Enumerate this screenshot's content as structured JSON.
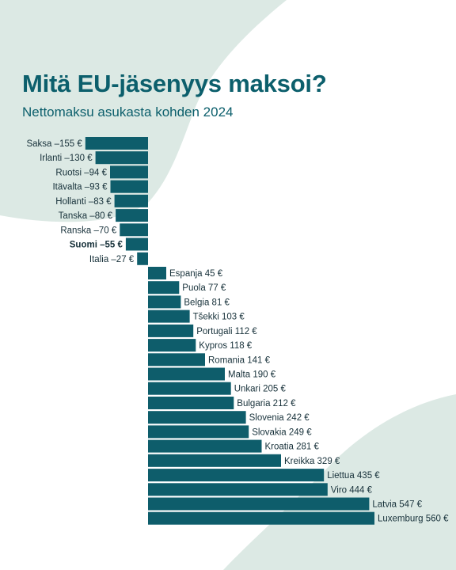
{
  "title": "Mitä EU-jäsenyys maksoi?",
  "subtitle": "Nettomaksu asukasta kohden 2024",
  "colors": {
    "bar": "#0e5d6b",
    "title": "#0c5f6c",
    "background_shape": "#dce9e4",
    "label": "#17313a"
  },
  "chart_data": {
    "type": "bar",
    "orientation": "horizontal",
    "unit": "€",
    "highlight": "Suomi",
    "categories": [
      "Saksa",
      "Irlanti",
      "Ruotsi",
      "Itävalta",
      "Hollanti",
      "Tanska",
      "Ranska",
      "Suomi",
      "Italia",
      "Espanja",
      "Puola",
      "Belgia",
      "Tšekki",
      "Portugali",
      "Kypros",
      "Romania",
      "Malta",
      "Unkari",
      "Bulgaria",
      "Slovenia",
      "Slovakia",
      "Kroatia",
      "Kreikka",
      "Liettua",
      "Viro",
      "Latvia",
      "Luxemburg"
    ],
    "values": [
      -155,
      -130,
      -94,
      -93,
      -83,
      -80,
      -70,
      -55,
      -27,
      45,
      77,
      81,
      103,
      112,
      118,
      141,
      190,
      205,
      212,
      242,
      249,
      281,
      329,
      435,
      444,
      547,
      560
    ],
    "labels": [
      "Saksa –155 €",
      "Irlanti –130 €",
      "Ruotsi –94 €",
      "Itävalta –93 €",
      "Hollanti –83 €",
      "Tanska –80 €",
      "Ranska –70 €",
      "Suomi –55 €",
      "Italia –27 €",
      "Espanja 45 €",
      "Puola 77 €",
      "Belgia 81 €",
      "Tšekki 103 €",
      "Portugali 112 €",
      "Kypros 118 €",
      "Romania 141 €",
      "Malta 190 €",
      "Unkari 205 €",
      "Bulgaria 212 €",
      "Slovenia 242 €",
      "Slovakia 249 €",
      "Kroatia 281 €",
      "Kreikka 329 €",
      "Liettua 435 €",
      "Viro 444 €",
      "Latvia 547 €",
      "Luxemburg 560 €"
    ]
  }
}
